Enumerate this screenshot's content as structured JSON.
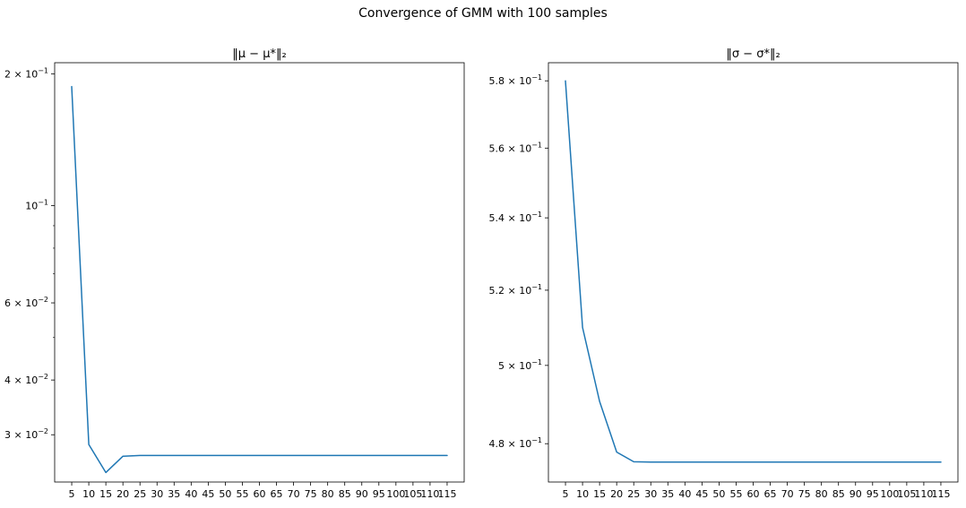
{
  "suptitle": "Convergence of GMM with 100 samples",
  "line_color": "#1f77b4",
  "chart_data": [
    {
      "type": "line",
      "title_text": "‖μ − μ*‖₂",
      "yscale": "log",
      "ylim": [
        0.0234,
        0.212
      ],
      "x": [
        5,
        10,
        15,
        20,
        25,
        30,
        35,
        40,
        45,
        50,
        55,
        60,
        65,
        70,
        75,
        80,
        85,
        90,
        95,
        100,
        105,
        110,
        115
      ],
      "x_tick_labels": [
        "5",
        "10",
        "15",
        "20",
        "25",
        "30",
        "35",
        "40",
        "45",
        "50",
        "55",
        "60",
        "65",
        "70",
        "75",
        "80",
        "85",
        "90",
        "95",
        "100",
        "105",
        "110",
        "115"
      ],
      "y_ticks": [
        {
          "value": 0.2,
          "base": "2 × 10",
          "exp": "−1"
        },
        {
          "value": 0.1,
          "base": "10",
          "exp": "−1"
        },
        {
          "value": 0.06,
          "base": "6 × 10",
          "exp": "−2"
        },
        {
          "value": 0.04,
          "base": "4 × 10",
          "exp": "−2"
        },
        {
          "value": 0.03,
          "base": "3 × 10",
          "exp": "−2"
        }
      ],
      "minor_ticks": [
        0.09,
        0.08,
        0.07,
        0.05
      ],
      "series": [
        {
          "name": "mu_error",
          "values": [
            0.187,
            0.0285,
            0.0246,
            0.0268,
            0.0269,
            0.0269,
            0.0269,
            0.0269,
            0.0269,
            0.0269,
            0.0269,
            0.0269,
            0.0269,
            0.0269,
            0.0269,
            0.0269,
            0.0269,
            0.0269,
            0.0269,
            0.0269,
            0.0269,
            0.0269,
            0.0269
          ]
        }
      ]
    },
    {
      "type": "line",
      "title_text": "‖σ − σ*‖₂",
      "yscale": "log",
      "ylim": [
        0.4705,
        0.5855
      ],
      "x": [
        5,
        10,
        15,
        20,
        25,
        30,
        35,
        40,
        45,
        50,
        55,
        60,
        65,
        70,
        75,
        80,
        85,
        90,
        95,
        100,
        105,
        110,
        115
      ],
      "x_tick_labels": [
        "5",
        "10",
        "15",
        "20",
        "25",
        "30",
        "35",
        "40",
        "45",
        "50",
        "55",
        "60",
        "65",
        "70",
        "75",
        "80",
        "85",
        "90",
        "95",
        "100",
        "105",
        "110",
        "115"
      ],
      "y_ticks": [
        {
          "value": 0.58,
          "base": "5.8 × 10",
          "exp": "−1"
        },
        {
          "value": 0.56,
          "base": "5.6 × 10",
          "exp": "−1"
        },
        {
          "value": 0.54,
          "base": "5.4 × 10",
          "exp": "−1"
        },
        {
          "value": 0.52,
          "base": "5.2 × 10",
          "exp": "−1"
        },
        {
          "value": 0.5,
          "base": "5 × 10",
          "exp": "−1"
        },
        {
          "value": 0.48,
          "base": "4.8 × 10",
          "exp": "−1"
        }
      ],
      "minor_ticks": [],
      "series": [
        {
          "name": "sigma_error",
          "values": [
            0.58,
            0.51,
            0.4907,
            0.4779,
            0.4755,
            0.4754,
            0.4754,
            0.4754,
            0.4754,
            0.4754,
            0.4754,
            0.4754,
            0.4754,
            0.4754,
            0.4754,
            0.4754,
            0.4754,
            0.4754,
            0.4754,
            0.4754,
            0.4754,
            0.4754,
            0.4754
          ]
        }
      ]
    }
  ]
}
